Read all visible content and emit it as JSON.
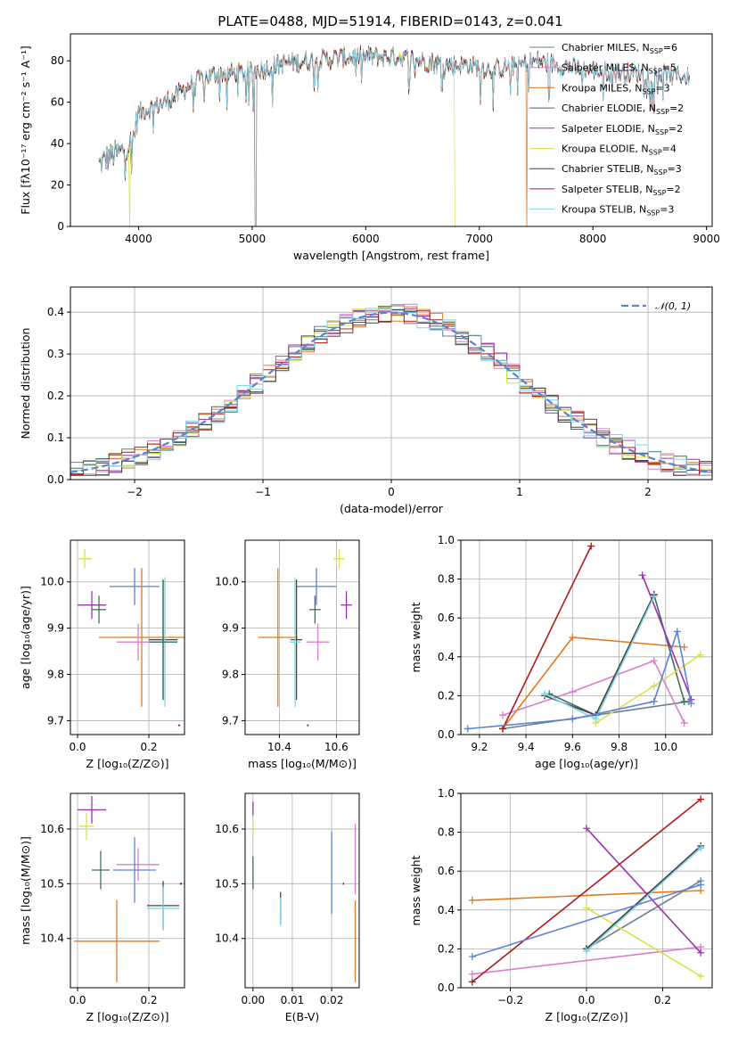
{
  "figure_title": "PLATE=0488, MJD=51914, FIBERID=0143, z=0.041",
  "colors": {
    "Chabrier MILES": "#6a7f8f",
    "Salpeter MILES": "#d97fc9",
    "Kroupa MILES": "#e07b22",
    "Chabrier ELODIE": "#3f6f5a",
    "Salpeter ELODIE": "#9a32b0",
    "Kroupa ELODIE": "#d8e14a",
    "Chabrier STELIB": "#444444",
    "Salpeter STELIB": "#b01a1a",
    "Kroupa STELIB": "#7fd6e6",
    "normal": "#5b82d6"
  },
  "chart_data": [
    {
      "id": "spectrum",
      "type": "line",
      "xlabel": "wavelength [Angstrom, rest frame]",
      "ylabel": "Flux [fλ10⁻¹⁷ erg cm⁻² s⁻¹ A⁻¹]",
      "xlim": [
        3400,
        9050
      ],
      "ylim": [
        0,
        93
      ],
      "xticks": [
        4000,
        5000,
        6000,
        7000,
        8000,
        9000
      ],
      "yticks": [
        0,
        20,
        40,
        60,
        80
      ],
      "grid": false,
      "legend_position": "right",
      "continuum": [
        [
          3650,
          30
        ],
        [
          3750,
          34
        ],
        [
          3850,
          36
        ],
        [
          3950,
          42
        ],
        [
          4000,
          55
        ],
        [
          4150,
          58
        ],
        [
          4300,
          62
        ],
        [
          4500,
          70
        ],
        [
          4700,
          74
        ],
        [
          4900,
          74
        ],
        [
          5100,
          76
        ],
        [
          5300,
          79
        ],
        [
          5500,
          80
        ],
        [
          5700,
          81
        ],
        [
          5900,
          82
        ],
        [
          6100,
          82
        ],
        [
          6300,
          82
        ],
        [
          6500,
          80
        ],
        [
          6700,
          78
        ],
        [
          6900,
          78
        ],
        [
          7100,
          76
        ],
        [
          7300,
          77
        ],
        [
          7500,
          80
        ],
        [
          7700,
          78
        ],
        [
          7900,
          76
        ],
        [
          8100,
          75
        ],
        [
          8300,
          74
        ],
        [
          8500,
          74
        ],
        [
          8700,
          73
        ],
        [
          8850,
          72
        ]
      ],
      "series": [
        {
          "name": "Chabrier MILES",
          "label_main": "Chabrier MILES, N",
          "sub": "SSP",
          "label_tail": "=6",
          "xmax": 8850
        },
        {
          "name": "Salpeter MILES",
          "label_main": "Salpeter MILES, N",
          "sub": "SSP",
          "label_tail": "=5",
          "xmax": 8850
        },
        {
          "name": "Kroupa MILES",
          "label_main": "Kroupa MILES, N",
          "sub": "SSP",
          "label_tail": "=3",
          "xmax": 7430
        },
        {
          "name": "Chabrier ELODIE",
          "label_main": "Chabrier ELODIE, N",
          "sub": "SSP",
          "label_tail": "=2",
          "xmax": 6800
        },
        {
          "name": "Salpeter ELODIE",
          "label_main": "Salpeter ELODIE, N",
          "sub": "SSP",
          "label_tail": "=2",
          "xmax": 6800
        },
        {
          "name": "Kroupa ELODIE",
          "label_main": "Kroupa ELODIE, N",
          "sub": "SSP",
          "label_tail": "=4",
          "xmax": 6800
        },
        {
          "name": "Chabrier STELIB",
          "label_main": "Chabrier STELIB, N",
          "sub": "SSP",
          "label_tail": "=3",
          "xmax": 8850
        },
        {
          "name": "Salpeter STELIB",
          "label_main": "Salpeter STELIB, N",
          "sub": "SSP",
          "label_tail": "=2",
          "xmax": 8850
        },
        {
          "name": "Kroupa STELIB",
          "label_main": "Kroupa STELIB, N",
          "sub": "SSP",
          "label_tail": "=3",
          "xmax": 8850
        }
      ],
      "dropouts": [
        [
          3920,
          "Kroupa ELODIE"
        ],
        [
          5030,
          "Chabrier MILES"
        ],
        [
          6790,
          "Kroupa ELODIE"
        ],
        [
          7420,
          "Kroupa MILES"
        ]
      ]
    },
    {
      "id": "residuals",
      "type": "histogram",
      "xlabel": "(data-model)/error",
      "ylabel": "Normed distribution",
      "xlim": [
        -2.5,
        2.5
      ],
      "ylim": [
        0,
        0.46
      ],
      "xticks": [
        -2,
        -1,
        0,
        1,
        2
      ],
      "yticks": [
        0.0,
        0.1,
        0.2,
        0.3,
        0.4
      ],
      "grid": true,
      "bin_width": 0.1,
      "legend_position": "top-right",
      "reference_curve": {
        "name": "𝒩(0, 1)",
        "mean": 0,
        "sigma": 1
      }
    },
    {
      "id": "age-vs-Z",
      "type": "scatter",
      "xlabel": "Z [log₁₀(Z/Z⊙)]",
      "ylabel": "age  [log₁₀(age/yr)]",
      "xlim": [
        -0.02,
        0.3
      ],
      "ylim": [
        9.67,
        10.09
      ],
      "xticks": [
        0.0,
        0.2
      ],
      "yticks": [
        9.7,
        9.8,
        9.9,
        10.0
      ],
      "grid": true,
      "points": [
        {
          "series": "Kroupa ELODIE",
          "x": 0.02,
          "y": 10.05,
          "xerr": 0.02,
          "yerr": 0.02
        },
        {
          "series": "normal",
          "x": 0.16,
          "y": 9.99,
          "xerr": 0.07,
          "yerr": 0.04
        },
        {
          "series": "Salpeter ELODIE",
          "x": 0.04,
          "y": 9.95,
          "xerr": 0.04,
          "yerr": 0.03
        },
        {
          "series": "Chabrier ELODIE",
          "x": 0.06,
          "y": 9.94,
          "xerr": 0.02,
          "yerr": 0.03
        },
        {
          "series": "Kroupa MILES",
          "x": 0.18,
          "y": 9.88,
          "xerr": 0.12,
          "yerr": 0.15
        },
        {
          "series": "Salpeter MILES",
          "x": 0.17,
          "y": 9.87,
          "xerr": 0.06,
          "yerr": 0.04
        },
        {
          "series": "Chabrier STELIB",
          "x": 0.24,
          "y": 9.875,
          "xerr": 0.04,
          "yerr": 0.13
        },
        {
          "series": "Kroupa STELIB",
          "x": 0.245,
          "y": 9.87,
          "xerr": 0.035,
          "yerr": 0.14
        },
        {
          "series": "Chabrier ELODIE",
          "x": 0.24,
          "y": 9.87,
          "xerr": 0.04,
          "yerr": 0.12
        },
        {
          "series": "Salpeter STELIB",
          "x": 0.285,
          "y": 9.69,
          "xerr": 0.003,
          "yerr": 0.002
        }
      ]
    },
    {
      "id": "age-vs-mass",
      "type": "scatter",
      "xlabel": "mass [log₁₀(M/M⊙)]",
      "ylabel": "",
      "xlim": [
        10.28,
        10.68
      ],
      "ylim": [
        9.67,
        10.09
      ],
      "xticks": [
        10.4,
        10.6
      ],
      "yticks": [
        9.7,
        9.8,
        9.9,
        10.0
      ],
      "grid": true,
      "points": [
        {
          "series": "Kroupa ELODIE",
          "x": 10.61,
          "y": 10.05,
          "xerr": 0.02,
          "yerr": 0.02
        },
        {
          "series": "normal",
          "x": 10.53,
          "y": 9.99,
          "xerr": 0.07,
          "yerr": 0.04
        },
        {
          "series": "Salpeter ELODIE",
          "x": 10.635,
          "y": 9.95,
          "xerr": 0.02,
          "yerr": 0.03
        },
        {
          "series": "Chabrier ELODIE",
          "x": 10.525,
          "y": 9.94,
          "xerr": 0.02,
          "yerr": 0.03
        },
        {
          "series": "Kroupa MILES",
          "x": 10.395,
          "y": 9.88,
          "xerr": 0.07,
          "yerr": 0.15
        },
        {
          "series": "Salpeter MILES",
          "x": 10.535,
          "y": 9.87,
          "xerr": 0.04,
          "yerr": 0.04
        },
        {
          "series": "Chabrier STELIB",
          "x": 10.46,
          "y": 9.875,
          "xerr": 0.02,
          "yerr": 0.13
        },
        {
          "series": "Kroupa STELIB",
          "x": 10.455,
          "y": 9.87,
          "xerr": 0.02,
          "yerr": 0.14
        },
        {
          "series": "Salpeter STELIB",
          "x": 10.5,
          "y": 9.69,
          "xerr": 0.003,
          "yerr": 0.002
        }
      ]
    },
    {
      "id": "weight-vs-age",
      "type": "line",
      "xlabel": "age  [log₁₀(age/yr)]",
      "ylabel": "mass weight",
      "xlim": [
        9.12,
        10.2
      ],
      "ylim": [
        0.0,
        1.0
      ],
      "xticks": [
        9.2,
        9.4,
        9.6,
        9.8,
        10.0
      ],
      "yticks": [
        0.0,
        0.2,
        0.4,
        0.6,
        0.8,
        1.0
      ],
      "grid": true,
      "series": [
        {
          "name": "Chabrier MILES",
          "x": [
            9.3,
            9.7,
            10.1
          ],
          "y": [
            0.03,
            0.1,
            0.17
          ]
        },
        {
          "name": "Salpeter MILES",
          "x": [
            9.3,
            9.6,
            9.95,
            10.08
          ],
          "y": [
            0.1,
            0.22,
            0.38,
            0.06
          ]
        },
        {
          "name": "Kroupa MILES",
          "x": [
            9.3,
            9.6,
            10.08
          ],
          "y": [
            0.03,
            0.5,
            0.45
          ]
        },
        {
          "name": "Chabrier ELODIE",
          "x": [
            9.5,
            9.7,
            9.95,
            10.08
          ],
          "y": [
            0.21,
            0.1,
            0.72,
            0.17
          ]
        },
        {
          "name": "Salpeter ELODIE",
          "x": [
            9.9,
            10.11
          ],
          "y": [
            0.82,
            0.18
          ]
        },
        {
          "name": "Kroupa ELODIE",
          "x": [
            9.7,
            9.95,
            10.15
          ],
          "y": [
            0.06,
            0.25,
            0.41
          ]
        },
        {
          "name": "Chabrier STELIB",
          "x": [
            9.48,
            9.7,
            9.95
          ],
          "y": [
            0.2,
            0.1,
            0.72
          ]
        },
        {
          "name": "Salpeter STELIB",
          "x": [
            9.3,
            9.68
          ],
          "y": [
            0.03,
            0.97
          ]
        },
        {
          "name": "Kroupa STELIB",
          "x": [
            9.48,
            9.7,
            9.95
          ],
          "y": [
            0.21,
            0.08,
            0.71
          ]
        },
        {
          "name": "normal",
          "x": [
            9.15,
            9.6,
            9.95,
            10.05,
            10.11
          ],
          "y": [
            0.03,
            0.08,
            0.17,
            0.53,
            0.16
          ]
        }
      ]
    },
    {
      "id": "mass-vs-Z",
      "type": "scatter",
      "xlabel": "Z [log₁₀(Z/Z⊙)]",
      "ylabel": "mass [log₁₀(M/M⊙)]",
      "xlim": [
        -0.02,
        0.3
      ],
      "ylim": [
        10.31,
        10.665
      ],
      "xticks": [
        0.0,
        0.2
      ],
      "yticks": [
        10.4,
        10.5,
        10.6
      ],
      "grid": true,
      "points": [
        {
          "series": "Salpeter ELODIE",
          "x": 0.04,
          "y": 10.635,
          "xerr": 0.04,
          "yerr": 0.025
        },
        {
          "series": "Kroupa ELODIE",
          "x": 0.025,
          "y": 10.605,
          "xerr": 0.02,
          "yerr": 0.025
        },
        {
          "series": "Salpeter MILES",
          "x": 0.17,
          "y": 10.535,
          "xerr": 0.06,
          "yerr": 0.03
        },
        {
          "series": "Chabrier ELODIE",
          "x": 0.065,
          "y": 10.525,
          "xerr": 0.025,
          "yerr": 0.035
        },
        {
          "series": "normal",
          "x": 0.16,
          "y": 10.525,
          "xerr": 0.06,
          "yerr": 0.06
        },
        {
          "series": "Chabrier STELIB",
          "x": 0.24,
          "y": 10.46,
          "xerr": 0.045,
          "yerr": 0.045
        },
        {
          "series": "Kroupa STELIB",
          "x": 0.24,
          "y": 10.455,
          "xerr": 0.045,
          "yerr": 0.04
        },
        {
          "series": "Kroupa MILES",
          "x": 0.11,
          "y": 10.395,
          "xerr": 0.12,
          "yerr": 0.075
        },
        {
          "series": "Salpeter STELIB",
          "x": 0.29,
          "y": 10.5,
          "xerr": 0.003,
          "yerr": 0.002
        }
      ]
    },
    {
      "id": "mass-vs-ebv",
      "type": "scatter",
      "xlabel": "E(B-V)",
      "ylabel": "",
      "xlim": [
        -0.002,
        0.027
      ],
      "ylim": [
        10.31,
        10.665
      ],
      "xticks": [
        0.0,
        0.01,
        0.02
      ],
      "xtick_labels": [
        "0.00",
        "0.01",
        "0.02"
      ],
      "yticks": [
        10.4,
        10.5,
        10.6
      ],
      "grid": true,
      "points": [
        {
          "series": "Salpeter ELODIE",
          "x": 0.0,
          "y": 10.635,
          "xerr": 0.0,
          "yerr": 0.015
        },
        {
          "series": "Kroupa ELODIE",
          "x": 0.0,
          "y": 10.605,
          "xerr": 0.0,
          "yerr": 0.02
        },
        {
          "series": "Chabrier ELODIE",
          "x": 0.0,
          "y": 10.52,
          "xerr": 0.0,
          "yerr": 0.03
        },
        {
          "series": "Chabrier STELIB",
          "x": 0.007,
          "y": 10.455,
          "xerr": 0.0,
          "yerr": 0.03
        },
        {
          "series": "Kroupa STELIB",
          "x": 0.007,
          "y": 10.45,
          "xerr": 0.0,
          "yerr": 0.025
        },
        {
          "series": "normal",
          "x": 0.02,
          "y": 10.52,
          "xerr": 0.0,
          "yerr": 0.075
        },
        {
          "series": "Salpeter MILES",
          "x": 0.026,
          "y": 10.545,
          "xerr": 0.0,
          "yerr": 0.065
        },
        {
          "series": "Kroupa MILES",
          "x": 0.026,
          "y": 10.395,
          "xerr": 0.0,
          "yerr": 0.075
        },
        {
          "series": "Salpeter STELIB",
          "x": 0.023,
          "y": 10.5,
          "xerr": 0.0,
          "yerr": 0.002
        }
      ]
    },
    {
      "id": "weight-vs-Z",
      "type": "line",
      "xlabel": "Z [log₁₀(Z/Z⊙)]",
      "ylabel": "mass weight",
      "xlim": [
        -0.33,
        0.33
      ],
      "ylim": [
        0.0,
        1.0
      ],
      "xticks": [
        -0.2,
        0.0,
        0.2
      ],
      "yticks": [
        0.0,
        0.2,
        0.4,
        0.6,
        0.8,
        1.0
      ],
      "grid": true,
      "series": [
        {
          "name": "Chabrier MILES",
          "x": [
            0.0,
            0.3
          ],
          "y": [
            0.2,
            0.55
          ]
        },
        {
          "name": "Salpeter MILES",
          "x": [
            -0.3,
            0.3
          ],
          "y": [
            0.07,
            0.21
          ]
        },
        {
          "name": "Kroupa MILES",
          "x": [
            -0.3,
            0.3
          ],
          "y": [
            0.45,
            0.5
          ]
        },
        {
          "name": "Chabrier ELODIE",
          "x": [
            0.0,
            0.3
          ],
          "y": [
            0.2,
            0.72
          ]
        },
        {
          "name": "Salpeter ELODIE",
          "x": [
            0.0,
            0.3
          ],
          "y": [
            0.82,
            0.18
          ]
        },
        {
          "name": "Kroupa ELODIE",
          "x": [
            0.0,
            0.3
          ],
          "y": [
            0.41,
            0.06
          ]
        },
        {
          "name": "Chabrier STELIB",
          "x": [
            0.0,
            0.3
          ],
          "y": [
            0.2,
            0.73
          ]
        },
        {
          "name": "Salpeter STELIB",
          "x": [
            -0.3,
            0.3
          ],
          "y": [
            0.03,
            0.97
          ]
        },
        {
          "name": "Kroupa STELIB",
          "x": [
            0.0,
            0.3
          ],
          "y": [
            0.19,
            0.72
          ]
        },
        {
          "name": "normal",
          "x": [
            -0.3,
            0.3
          ],
          "y": [
            0.16,
            0.53
          ]
        }
      ]
    }
  ]
}
